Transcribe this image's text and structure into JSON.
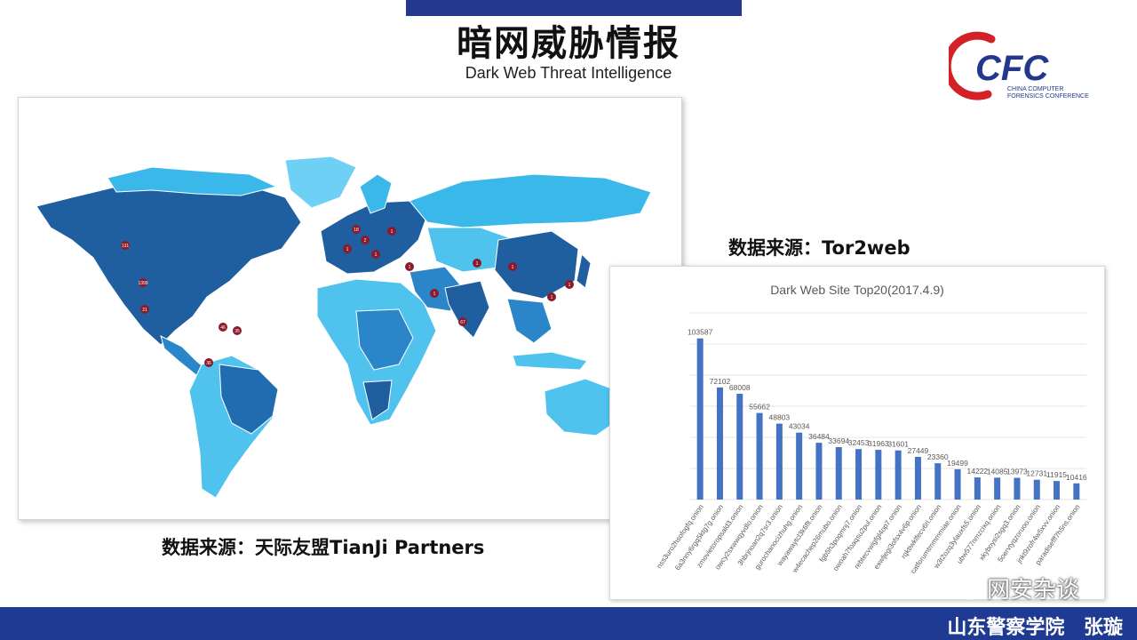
{
  "slide": {
    "title": "暗网威胁情报",
    "subtitle": "Dark Web Threat Intelligence",
    "map_caption": "数据来源：天际友盟TianJi Partners",
    "chart_caption": "数据来源：Tor2web",
    "footer": "山东警察学院 张璇",
    "watermark": "网安杂谈",
    "colors": {
      "bar_top": "#23378c",
      "bar_bottom": "#1f3a93",
      "map_ocean": "#ffffff",
      "map_land_light": "#4fc3ee",
      "map_land_dark": "#1f5fa0",
      "marker": "#8b1a2b",
      "chart_bar": "#4472c4"
    }
  },
  "logo": {
    "mark": "CFC",
    "line1": "CHINA COMPUTER",
    "line2": "FORENSICS CONFERENCE"
  },
  "map": {
    "icon": "world-map",
    "marker_labels": [
      "131",
      "1399",
      "21",
      "67",
      "36",
      "46",
      "35",
      "18",
      "1",
      "2",
      "1",
      "1",
      "1",
      "1",
      "1",
      "1",
      "1",
      "1",
      "1"
    ]
  },
  "chart_data": {
    "type": "bar",
    "title": "Dark Web Site Top20(2017.4.9)",
    "categories": [
      "nss3uro2hsofogfq.onion",
      "6a3nny6rgq5ktg7g.onion",
      "zmovietoropsald3.onion",
      "owcy2sxwwqyvdlo.onion",
      "3hbrjnoan2q7sr3.onion",
      "gurochanocizhuhg.onion",
      "wayawaytcl3k6flt.onion",
      "w4ecachep26mubo.onion",
      "fgb5h3poqmnj7.onion",
      "owoah7foaqsu2pul.onion",
      "rebtecvwigfgl4op7.onion",
      "exwljegi3ofsx4v6p.onion",
      "rqktiwklfecv6ri.onion",
      "catforumtmmmmiae.onion",
      "w3t2ozq3ylauxfs5.onion",
      "ubw577nmzcixq.onion",
      "xkyboysi2sgq3.onion",
      "5oervtyqzoruoo.onion",
      "jnkt9zofr4w5xvv.onion",
      "paradisefff7h5ns.onion"
    ],
    "values": [
      103587,
      72102,
      68008,
      55662,
      48803,
      43034,
      36484,
      33694,
      32453,
      31963,
      31601,
      27449,
      23360,
      19499,
      14222,
      14085,
      13973,
      12731,
      11915,
      10416
    ],
    "data_labels": [
      "103587",
      "72102",
      "68008",
      "55662",
      "48803",
      "43034",
      "36484",
      "33694",
      "32453",
      "31963",
      "31601",
      "27449",
      "23360",
      "19499",
      "14222",
      "14085",
      "13973",
      "12731",
      "11915",
      "10416"
    ],
    "ylim": [
      0,
      120000
    ],
    "grid": true,
    "legend": "none"
  }
}
